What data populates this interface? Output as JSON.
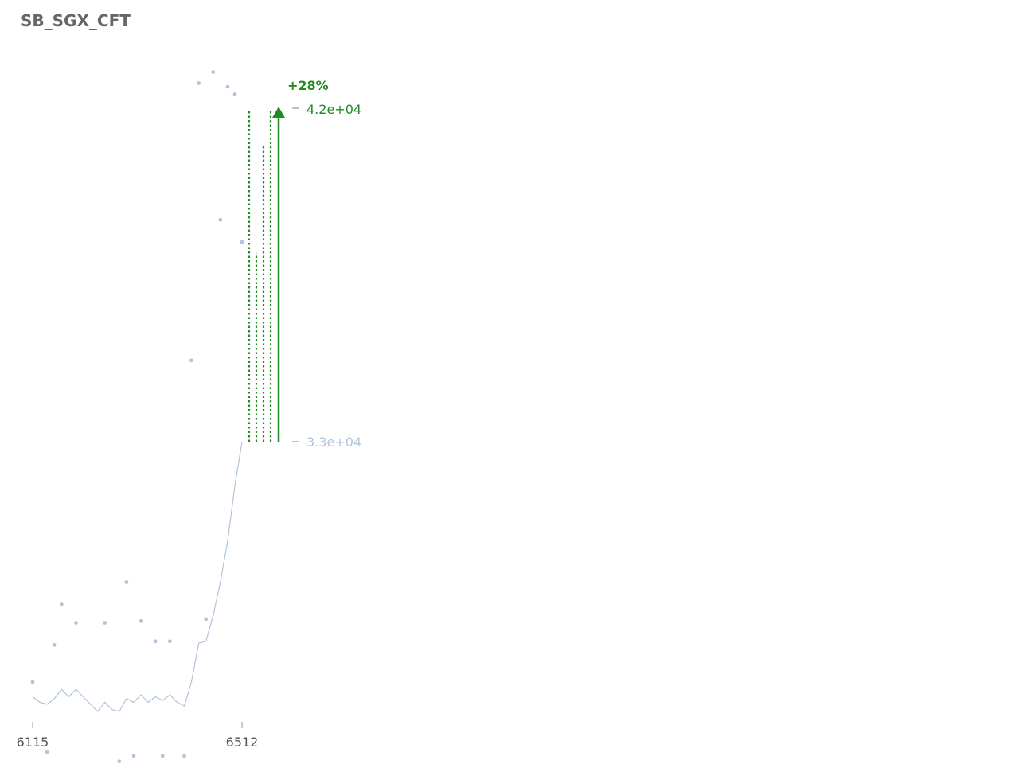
{
  "title": "SB_SGX_CFT",
  "colors": {
    "series": "#b0c4de",
    "up": "#228b22",
    "muted_tick": "#aaaaaa",
    "title": "#666666"
  },
  "chart_data": {
    "type": "line",
    "title": "SB_SGX_CFT",
    "xlabel": "",
    "ylabel": "",
    "x_ticks": [
      6115,
      6512
    ],
    "xlim": [
      6115,
      6512
    ],
    "grid": false,
    "series": [
      {
        "style": "line",
        "x": [
          6115,
          6128.7,
          6142.4,
          6156.1,
          6169.8,
          6183.4,
          6197.1,
          6210.8,
          6224.5,
          6238.2,
          6251.9,
          6265.6,
          6279.3,
          6293,
          6306.7,
          6320.4,
          6334.1,
          6347.8,
          6361.5,
          6375.2,
          6388.8,
          6402.5,
          6416.2,
          6429.9,
          6443.6,
          6457.3,
          6471,
          6484.7,
          6498.4,
          6512
        ],
        "y": [
          26100,
          25950,
          25900,
          26050,
          26300,
          26100,
          26300,
          26100,
          25900,
          25700,
          25950,
          25750,
          25700,
          26050,
          25950,
          26150,
          25950,
          26100,
          26000,
          26150,
          25950,
          25850,
          26500,
          27550,
          27600,
          28300,
          29200,
          30300,
          31800,
          33000
        ]
      },
      {
        "style": "scatter",
        "x": [
          6115,
          6128.7,
          6142.4,
          6156.1,
          6169.8,
          6183.4,
          6197.1,
          6210.8,
          6224.5,
          6238.2,
          6251.9,
          6265.6,
          6279.3,
          6293,
          6306.7,
          6320.4,
          6334.1,
          6347.8,
          6361.5,
          6375.2,
          6388.8,
          6402.5,
          6416.2,
          6429.9,
          6443.6,
          6457.3,
          6471,
          6484.7,
          6498.4,
          6512
        ],
        "y": [
          26500,
          24200,
          24600,
          27500,
          28600,
          24050,
          28100,
          24000,
          23900,
          24000,
          28100,
          23950,
          24350,
          29200,
          24500,
          28150,
          23800,
          27600,
          24500,
          27600,
          23950,
          24500,
          35200,
          42700,
          28200,
          43000,
          39000,
          42600,
          42400,
          38400
        ]
      }
    ],
    "annotation": {
      "from_value": 33000,
      "to_value": 42000,
      "from_label": "3.3e+04",
      "to_label": "4.2e+04",
      "change_label": "+28%",
      "bars": [
        42000,
        38100,
        41000,
        42000
      ]
    }
  }
}
